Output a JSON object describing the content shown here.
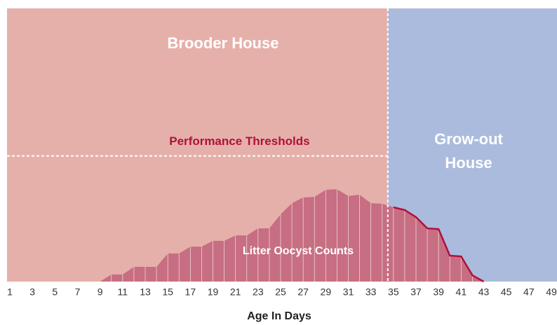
{
  "chart_data": {
    "type": "area",
    "regions": [
      {
        "label": "Brooder House",
        "color": "#e6b0aa"
      },
      {
        "label": [
          "Grow-out",
          "House"
        ],
        "color": "#abbbdd"
      }
    ],
    "region_divider": 34.5,
    "threshold": {
      "label": "Performance Thresholds",
      "value": 46
    },
    "series": [
      {
        "name": "Litter Oocyst Counts",
        "color": "#c76e82",
        "outline_color": "#b0103a",
        "values": [
          0,
          0,
          0,
          0,
          0,
          0,
          0,
          0,
          0,
          2.6,
          2.6,
          5.4,
          5.4,
          5.4,
          10.3,
          10.3,
          12.8,
          12.8,
          14.9,
          14.9,
          16.9,
          16.9,
          19.5,
          19.5,
          24.6,
          28.7,
          30.8,
          31,
          33.6,
          33.8,
          31.3,
          31.8,
          28.7,
          28.5,
          27.2,
          26.2,
          23.6,
          19.5,
          19.2,
          9.5,
          9.2,
          2.3,
          0,
          0,
          0,
          0,
          0,
          0,
          0
        ]
      }
    ],
    "x": [
      1,
      2,
      3,
      4,
      5,
      6,
      7,
      8,
      9,
      10,
      11,
      12,
      13,
      14,
      15,
      16,
      17,
      18,
      19,
      20,
      21,
      22,
      23,
      24,
      25,
      26,
      27,
      28,
      29,
      30,
      31,
      32,
      33,
      34,
      35,
      36,
      37,
      38,
      39,
      40,
      41,
      42,
      43,
      44,
      45,
      46,
      47,
      48,
      49
    ],
    "xlim": [
      1,
      49
    ],
    "xticks": [
      1,
      3,
      5,
      7,
      9,
      11,
      13,
      15,
      17,
      19,
      21,
      23,
      25,
      27,
      29,
      31,
      33,
      35,
      37,
      39,
      41,
      43,
      45,
      47,
      49
    ],
    "ylim": [
      0,
      100
    ],
    "xlabel": "Age In Days"
  }
}
